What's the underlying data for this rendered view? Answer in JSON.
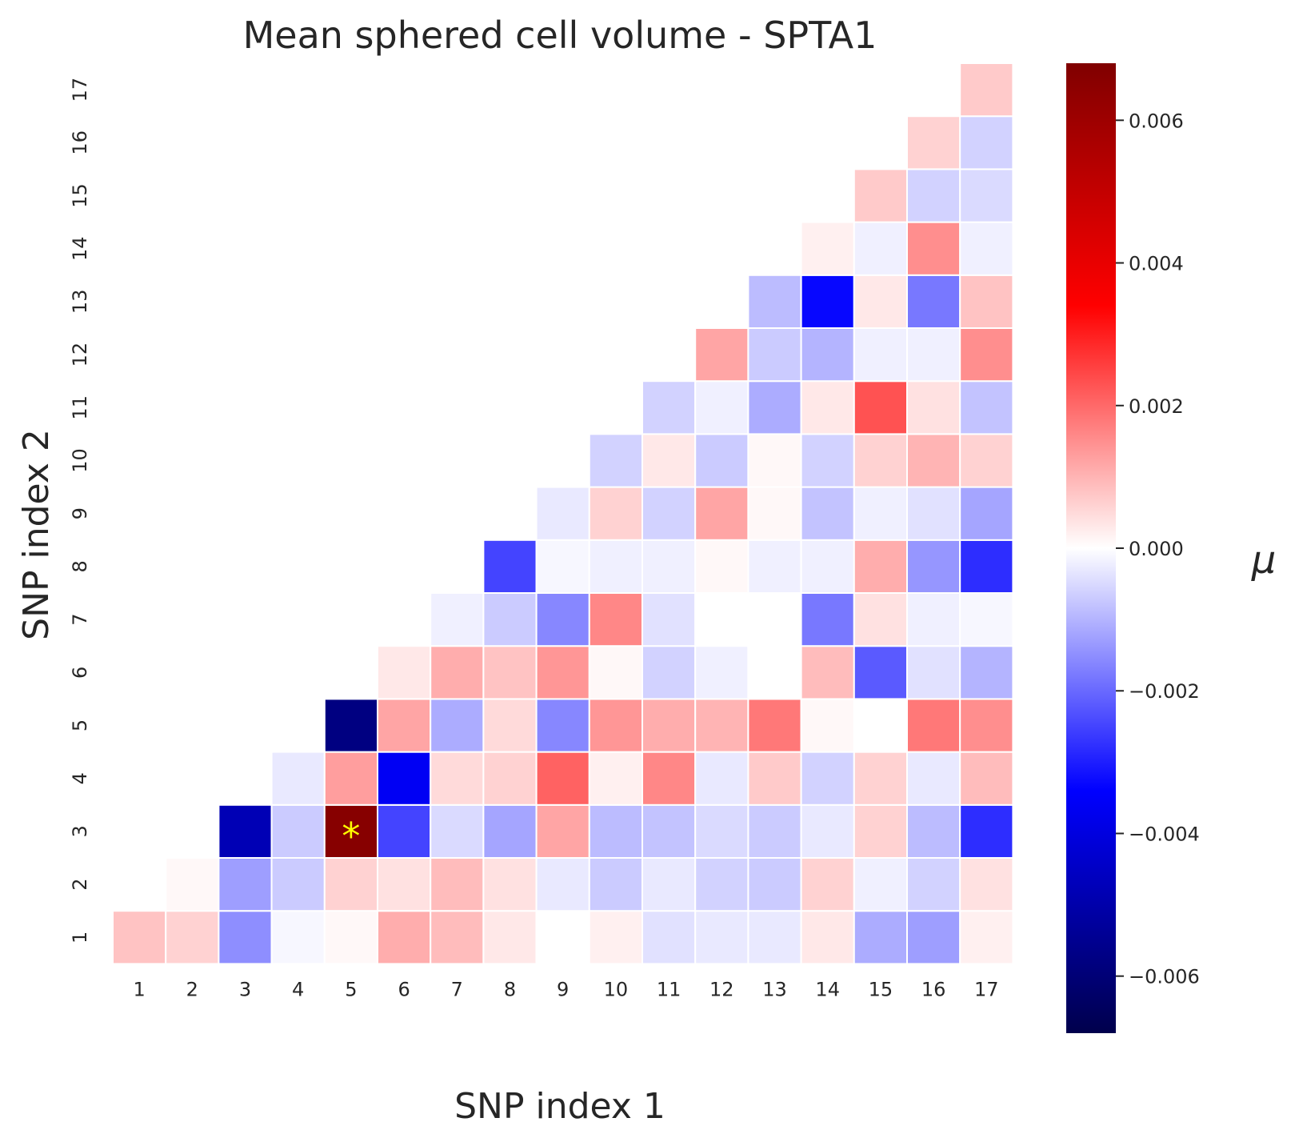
{
  "chart_data": {
    "type": "heatmap",
    "title": "Mean sphered cell volume - SPTA1",
    "xlabel": "SNP index 1",
    "ylabel": "SNP index 2",
    "x_ticks": [
      "1",
      "2",
      "3",
      "4",
      "5",
      "6",
      "7",
      "8",
      "9",
      "10",
      "11",
      "12",
      "13",
      "14",
      "15",
      "16",
      "17"
    ],
    "y_ticks": [
      "1",
      "2",
      "3",
      "4",
      "5",
      "6",
      "7",
      "8",
      "9",
      "10",
      "11",
      "12",
      "13",
      "14",
      "15",
      "16",
      "17"
    ],
    "colorbar": {
      "label": "μ",
      "vmin": -0.0068,
      "vmax": 0.0068,
      "ticks": [
        -0.006,
        -0.004,
        -0.002,
        0.0,
        0.002,
        0.004,
        0.006
      ],
      "tick_labels": [
        "−0.006",
        "−0.004",
        "−0.002",
        "0.000",
        "0.002",
        "0.004",
        "0.006"
      ],
      "colormap": "seismic"
    },
    "mask": "lower-triangle (only x ≤ y... shown where row index ≤ column index)",
    "rows": [
      {
        "y": 1,
        "values": [
          0.0008,
          0.0006,
          -0.0015,
          -0.0001,
          0.0001,
          0.0011,
          0.0009,
          0.0003,
          0.0,
          0.0002,
          -0.0004,
          -0.0003,
          -0.0003,
          0.0003,
          -0.0011,
          -0.0013,
          0.0002
        ]
      },
      {
        "y": 2,
        "values": [
          null,
          0.0001,
          -0.0013,
          -0.0007,
          0.0006,
          0.0004,
          0.0009,
          0.0004,
          -0.0003,
          -0.0007,
          -0.0003,
          -0.0006,
          -0.0007,
          0.0006,
          -0.0002,
          -0.0006,
          0.0004
        ]
      },
      {
        "y": 3,
        "values": [
          null,
          null,
          -0.0048,
          -0.0007,
          0.0066,
          -0.0025,
          -0.0005,
          -0.0012,
          0.0012,
          -0.0009,
          -0.0008,
          -0.0005,
          -0.0007,
          -0.0003,
          0.0006,
          -0.0009,
          -0.0028
        ]
      },
      {
        "y": 4,
        "values": [
          null,
          null,
          null,
          -0.0003,
          0.0013,
          -0.0036,
          0.0005,
          0.0006,
          0.0021,
          0.0002,
          0.0016,
          -0.0003,
          0.0007,
          -0.0006,
          0.0006,
          -0.0003,
          0.0009
        ]
      },
      {
        "y": 5,
        "values": [
          null,
          null,
          null,
          null,
          -0.0058,
          0.0012,
          -0.0011,
          0.0005,
          -0.0016,
          0.0014,
          0.0011,
          0.001,
          0.0018,
          0.0001,
          0.0,
          0.0018,
          0.0015
        ]
      },
      {
        "y": 6,
        "values": [
          null,
          null,
          null,
          null,
          null,
          0.0003,
          0.0011,
          0.0008,
          0.0014,
          0.0001,
          -0.0006,
          -0.0002,
          0.0,
          0.0009,
          -0.0022,
          -0.0004,
          -0.001
        ]
      },
      {
        "y": 7,
        "values": [
          null,
          null,
          null,
          null,
          null,
          null,
          -0.0002,
          -0.0007,
          -0.0016,
          0.0016,
          -0.0004,
          0.0,
          0.0,
          -0.0018,
          0.0004,
          -0.0002,
          -0.0001
        ]
      },
      {
        "y": 8,
        "values": [
          null,
          null,
          null,
          null,
          null,
          null,
          null,
          -0.0025,
          -0.0001,
          -0.0002,
          -0.0002,
          0.0001,
          -0.0002,
          -0.0002,
          0.0011,
          -0.0014,
          -0.0028
        ]
      },
      {
        "y": 9,
        "values": [
          null,
          null,
          null,
          null,
          null,
          null,
          null,
          null,
          -0.0003,
          0.0006,
          -0.0006,
          0.0012,
          0.0001,
          -0.0008,
          -0.0002,
          -0.0004,
          -0.0012
        ]
      },
      {
        "y": 10,
        "values": [
          null,
          null,
          null,
          null,
          null,
          null,
          null,
          null,
          null,
          -0.0006,
          0.0003,
          -0.0007,
          0.0001,
          -0.0006,
          0.0006,
          0.001,
          0.0006
        ]
      },
      {
        "y": 11,
        "values": [
          null,
          null,
          null,
          null,
          null,
          null,
          null,
          null,
          null,
          null,
          -0.0006,
          -0.0002,
          -0.0011,
          0.0003,
          0.0023,
          0.0004,
          -0.0008
        ]
      },
      {
        "y": 12,
        "values": [
          null,
          null,
          null,
          null,
          null,
          null,
          null,
          null,
          null,
          null,
          null,
          0.0012,
          -0.0007,
          -0.001,
          -0.0002,
          -0.0002,
          0.0015
        ]
      },
      {
        "y": 13,
        "values": [
          null,
          null,
          null,
          null,
          null,
          null,
          null,
          null,
          null,
          null,
          null,
          null,
          -0.0009,
          -0.0033,
          0.0003,
          -0.0018,
          0.0008
        ]
      },
      {
        "y": 14,
        "values": [
          null,
          null,
          null,
          null,
          null,
          null,
          null,
          null,
          null,
          null,
          null,
          null,
          null,
          0.0002,
          -0.0002,
          0.0015,
          -0.0002
        ]
      },
      {
        "y": 15,
        "values": [
          null,
          null,
          null,
          null,
          null,
          null,
          null,
          null,
          null,
          null,
          null,
          null,
          null,
          null,
          0.0007,
          -0.0006,
          -0.0005
        ]
      },
      {
        "y": 16,
        "values": [
          null,
          null,
          null,
          null,
          null,
          null,
          null,
          null,
          null,
          null,
          null,
          null,
          null,
          null,
          null,
          0.0006,
          -0.0006
        ]
      },
      {
        "y": 17,
        "values": [
          null,
          null,
          null,
          null,
          null,
          null,
          null,
          null,
          null,
          null,
          null,
          null,
          null,
          null,
          null,
          null,
          0.0007
        ]
      }
    ],
    "annotations": [
      {
        "x": 5,
        "y": 3,
        "text": "*",
        "color": "#ffff00"
      }
    ],
    "grid": false,
    "cell_border_color": "#ffffff"
  }
}
